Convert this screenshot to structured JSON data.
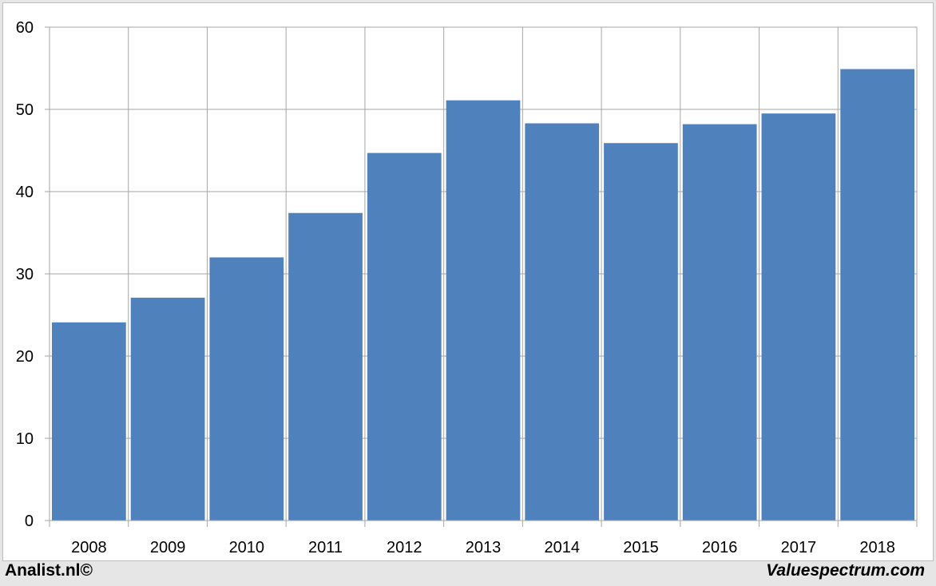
{
  "chart_data": {
    "type": "bar",
    "categories": [
      "2008",
      "2009",
      "2010",
      "2011",
      "2012",
      "2013",
      "2014",
      "2015",
      "2016",
      "2017",
      "2018"
    ],
    "values": [
      24.1,
      27.1,
      32.0,
      37.4,
      44.7,
      51.1,
      48.3,
      45.9,
      48.2,
      49.5,
      54.9
    ],
    "ylim": [
      0,
      60
    ],
    "yticks": [
      0,
      10,
      20,
      30,
      40,
      50,
      60
    ],
    "grid": true,
    "bar_color": "#4f81bd",
    "grid_color": "#a6a6a6"
  },
  "footer": {
    "left": "Analist.nl©",
    "right": "Valuespectrum.com"
  }
}
